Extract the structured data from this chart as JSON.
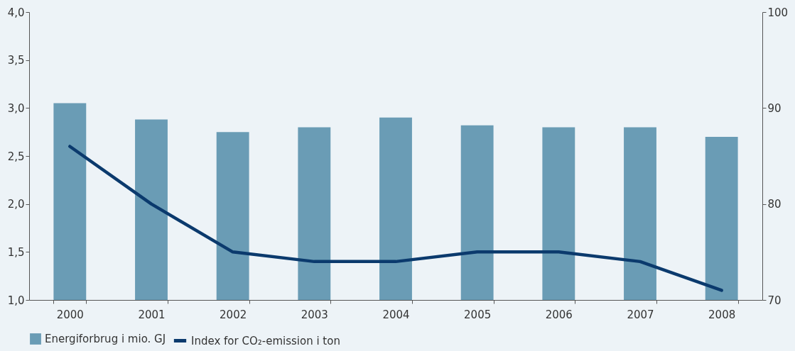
{
  "chart_data": {
    "type": "bar",
    "categories": [
      "2000",
      "2001",
      "2002",
      "2003",
      "2004",
      "2005",
      "2006",
      "2007",
      "2008"
    ],
    "series": [
      {
        "name": "Energiforbrug i mio. GJ",
        "color": "#6a9cb5",
        "values": [
          3.05,
          2.88,
          2.75,
          2.8,
          2.9,
          2.82,
          2.8,
          2.8,
          2.7
        ]
      },
      {
        "name": "Index for CO₂-emission i ton",
        "type": "line",
        "axis": "y2",
        "color": "#0b3a6d",
        "values": [
          86,
          80,
          75,
          74,
          74,
          75,
          75,
          74,
          71
        ]
      }
    ],
    "ylim": [
      1,
      4
    ],
    "yticks": [
      {
        "value": 1,
        "label": "1,0"
      },
      {
        "value": 1.5,
        "label": "1,5"
      },
      {
        "value": 2,
        "label": "2,0"
      },
      {
        "value": 2.5,
        "label": "2,5"
      },
      {
        "value": 3,
        "label": "3,0"
      },
      {
        "value": 3.5,
        "label": "3,5"
      },
      {
        "value": 4,
        "label": "4,0"
      }
    ],
    "y2lim": [
      70,
      100
    ],
    "y2ticks": [
      70,
      80,
      90,
      100
    ],
    "grid": false,
    "legend": "bottom",
    "marker": "none",
    "line_style": "solid"
  }
}
